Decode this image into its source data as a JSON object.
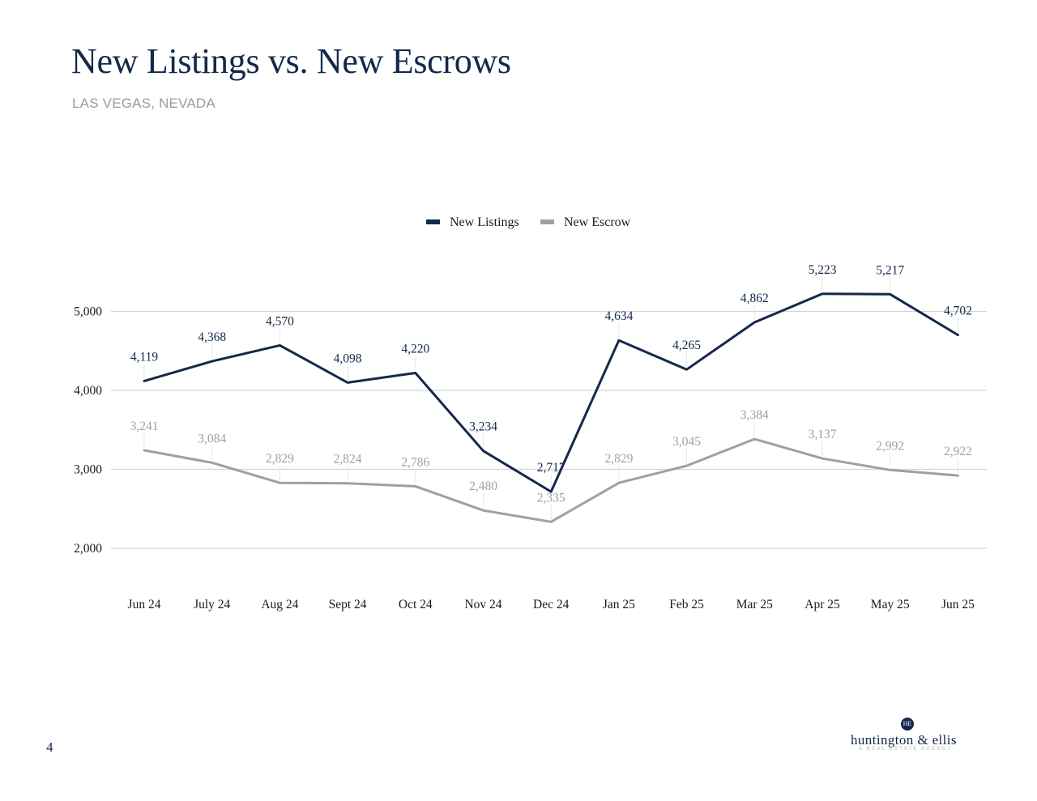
{
  "header": {
    "title": "New Listings vs. New Escrows",
    "subtitle": "LAS VEGAS, NEVADA"
  },
  "footer": {
    "page_number": "4",
    "logo": {
      "badge": "HE",
      "name": "huntington & ellis",
      "tagline": "A REAL ESTATE AGENCY"
    }
  },
  "colors": {
    "listings": "#14284b",
    "escrow": "#a0a0a0",
    "grid": "#d4d4d4",
    "axis_text": "#1a1a1a"
  },
  "chart_data": {
    "type": "line",
    "categories": [
      "Jun 24",
      "July 24",
      "Aug 24",
      "Sept 24",
      "Oct 24",
      "Nov 24",
      "Dec 24",
      "Jan 25",
      "Feb 25",
      "Mar 25",
      "Apr 25",
      "May 25",
      "Jun 25"
    ],
    "series": [
      {
        "name": "New Listings",
        "values": [
          4119,
          4368,
          4570,
          4098,
          4220,
          3234,
          2717,
          4634,
          4265,
          4862,
          5223,
          5217,
          4702
        ]
      },
      {
        "name": "New Escrow",
        "values": [
          3241,
          3084,
          2829,
          2824,
          2786,
          2480,
          2335,
          2829,
          3045,
          3384,
          3137,
          2992,
          2922
        ]
      }
    ],
    "yticks": [
      "2,000",
      "3,000",
      "4,000",
      "5,000"
    ],
    "ylim": [
      1250,
      5600
    ],
    "grid": true,
    "legend": "top-center",
    "data_labels": true
  }
}
